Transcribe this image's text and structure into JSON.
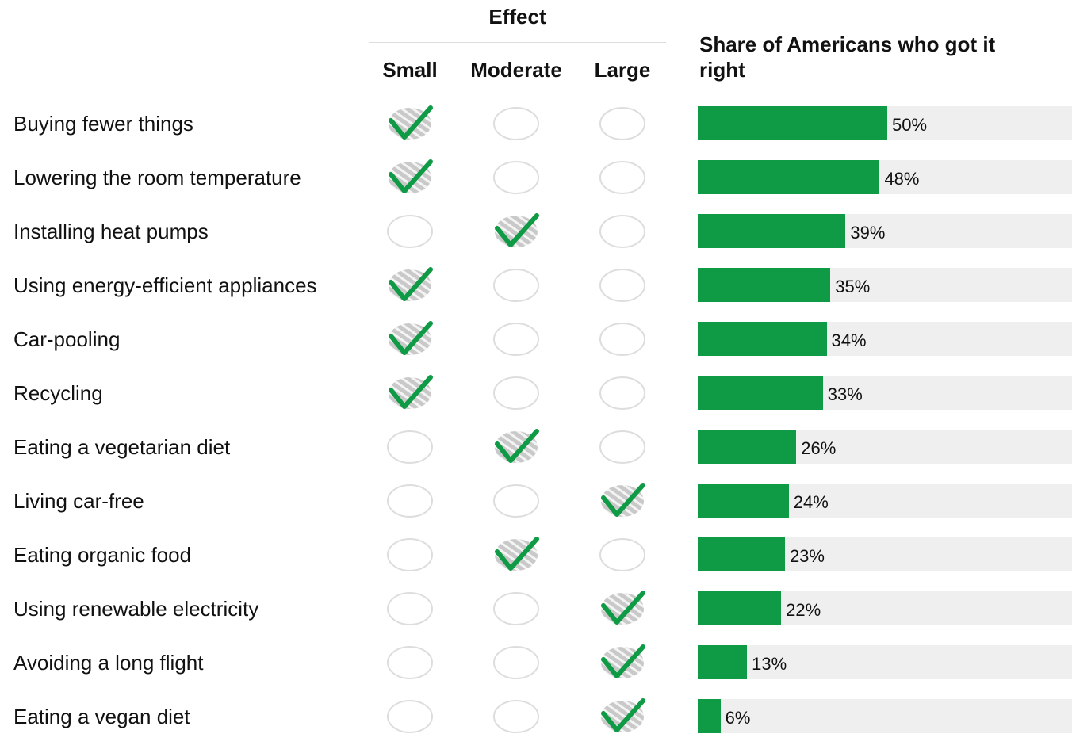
{
  "header": {
    "effect": "Effect",
    "levels": [
      "Small",
      "Moderate",
      "Large"
    ],
    "share": "Share of Americans who got it right"
  },
  "color": "#0f9a45",
  "xlim": [
    0,
    100
  ],
  "rows": [
    {
      "label": "Buying fewer things",
      "effect": 0,
      "share": 50,
      "share_label": "50%"
    },
    {
      "label": "Lowering the room temperature",
      "effect": 0,
      "share": 48,
      "share_label": "48%"
    },
    {
      "label": "Installing heat pumps",
      "effect": 1,
      "share": 39,
      "share_label": "39%"
    },
    {
      "label": "Using energy-efficient appliances",
      "effect": 0,
      "share": 35,
      "share_label": "35%"
    },
    {
      "label": "Car-pooling",
      "effect": 0,
      "share": 34,
      "share_label": "34%"
    },
    {
      "label": "Recycling",
      "effect": 0,
      "share": 33,
      "share_label": "33%"
    },
    {
      "label": "Eating a vegetarian diet",
      "effect": 1,
      "share": 26,
      "share_label": "26%"
    },
    {
      "label": "Living car-free",
      "effect": 2,
      "share": 24,
      "share_label": "24%"
    },
    {
      "label": "Eating organic food",
      "effect": 1,
      "share": 23,
      "share_label": "23%"
    },
    {
      "label": "Using renewable electricity",
      "effect": 2,
      "share": 22,
      "share_label": "22%"
    },
    {
      "label": "Avoiding a long flight",
      "effect": 2,
      "share": 13,
      "share_label": "13%"
    },
    {
      "label": "Eating a vegan diet",
      "effect": 2,
      "share": 6,
      "share_label": "6%"
    }
  ]
}
